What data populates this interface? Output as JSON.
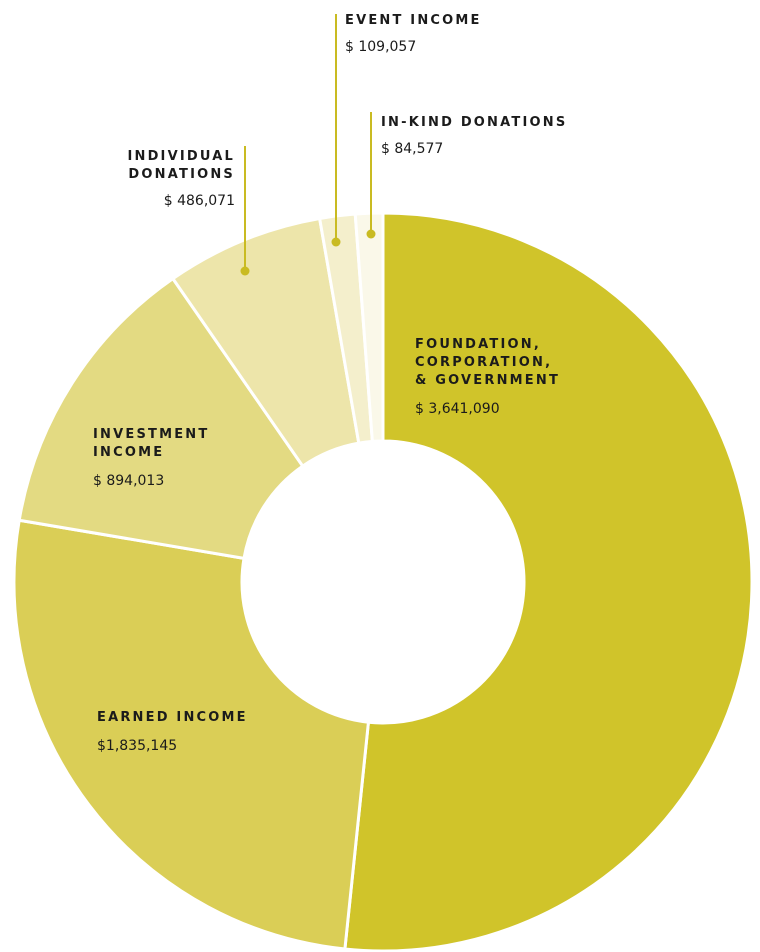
{
  "chart_data": {
    "type": "pie",
    "donut": true,
    "legend": "none",
    "categories": [
      "FOUNDATION, CORPORATION, & GOVERNMENT",
      "EARNED INCOME",
      "INVESTMENT INCOME",
      "INDIVIDUAL DONATIONS",
      "EVENT INCOME",
      "IN-KIND DONATIONS"
    ],
    "values": [
      3641090,
      1835145,
      894013,
      486071,
      109057,
      84577
    ],
    "slices": [
      {
        "label_lines": [
          "FOUNDATION,",
          "CORPORATION,",
          "& GOVERNMENT"
        ],
        "value_label": "$ 3,641,090",
        "value": 3641090,
        "color": "#d0c42a"
      },
      {
        "label_lines": [
          "EARNED INCOME"
        ],
        "value_label": "$1,835,145",
        "value": 1835145,
        "color": "#dace56"
      },
      {
        "label_lines": [
          "INVESTMENT",
          "INCOME"
        ],
        "value_label": "$ 894,013",
        "value": 894013,
        "color": "#e3da82"
      },
      {
        "label_lines": [
          "INDIVIDUAL",
          "DONATIONS"
        ],
        "value_label": "$ 486,071",
        "value": 486071,
        "color": "#ede5aa"
      },
      {
        "label_lines": [
          "EVENT INCOME"
        ],
        "value_label": "$ 109,057",
        "value": 109057,
        "color": "#f4efcc"
      },
      {
        "label_lines": [
          "IN-KIND DONATIONS"
        ],
        "value_label": "$ 84,577",
        "value": 84577,
        "color": "#faf8e9"
      }
    ],
    "accent_color": "#c9bb22"
  }
}
